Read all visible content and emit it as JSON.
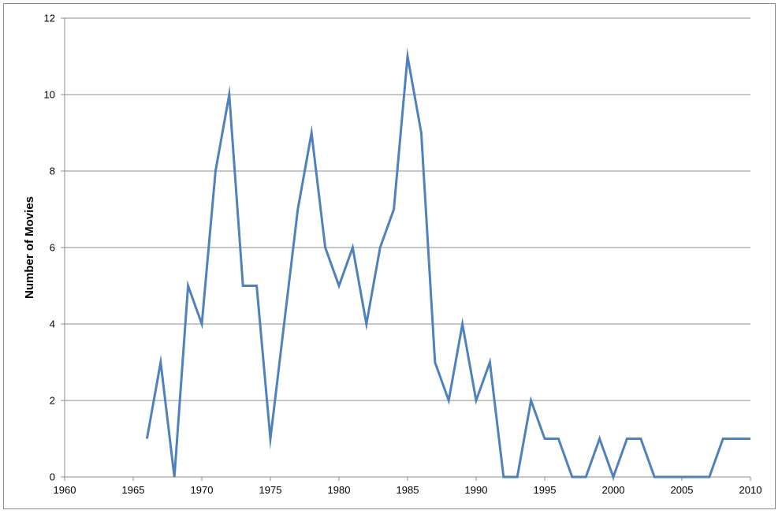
{
  "chart_data": {
    "type": "line",
    "title": "",
    "xlabel": "",
    "ylabel": "Number of Movies",
    "xlim": [
      1960,
      2010
    ],
    "ylim": [
      0,
      12
    ],
    "x_ticks": [
      1960,
      1965,
      1970,
      1975,
      1980,
      1985,
      1990,
      1995,
      2000,
      2005,
      2010
    ],
    "y_ticks": [
      0,
      2,
      4,
      6,
      8,
      10,
      12
    ],
    "grid": "horizontal",
    "legend": "none",
    "series": [
      {
        "color": "#4F81BD",
        "x": [
          1966,
          1967,
          1968,
          1969,
          1970,
          1971,
          1972,
          1973,
          1974,
          1975,
          1976,
          1977,
          1978,
          1979,
          1980,
          1981,
          1982,
          1983,
          1984,
          1985,
          1986,
          1987,
          1988,
          1989,
          1990,
          1991,
          1992,
          1993,
          1994,
          1995,
          1996,
          1997,
          1998,
          1999,
          2000,
          2001,
          2002,
          2003,
          2004,
          2005,
          2006,
          2007,
          2008,
          2009,
          2010
        ],
        "values": [
          1,
          3,
          0,
          5,
          4,
          8,
          10,
          5,
          5,
          1,
          4,
          7,
          9,
          6,
          5,
          6,
          4,
          6,
          7,
          11,
          9,
          3,
          2,
          4,
          2,
          3,
          0,
          0,
          2,
          1,
          1,
          0,
          0,
          1,
          0,
          1,
          1,
          0,
          0,
          0,
          0,
          0,
          1,
          1,
          1
        ]
      }
    ]
  },
  "colors": {
    "line": "#4F81BD",
    "grid": "#8c8c8c",
    "axis": "#8c8c8c",
    "frame": "#8c8c8c"
  }
}
